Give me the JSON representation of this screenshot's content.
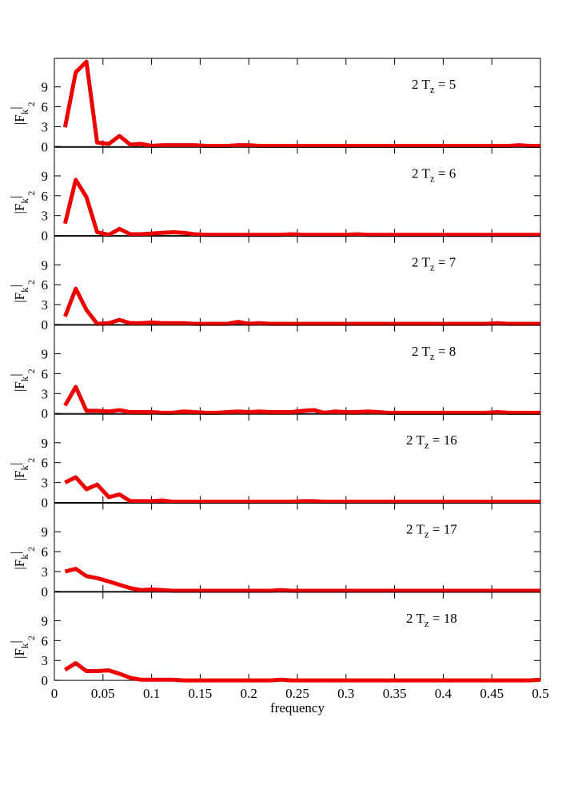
{
  "chart_data": [
    {
      "type": "line",
      "annotation": [
        "2 T",
        "z",
        " = 5"
      ],
      "ylabel": [
        "|F",
        "k",
        "|",
        "2"
      ],
      "xlim": [
        0,
        0.5
      ],
      "ylim": [
        0,
        13.3
      ],
      "yticks": [
        0,
        3,
        6,
        9
      ],
      "x": [
        0.011,
        0.022,
        0.033,
        0.044,
        0.056,
        0.067,
        0.078,
        0.089,
        0.1,
        0.111,
        0.122,
        0.133,
        0.144,
        0.156,
        0.167,
        0.178,
        0.189,
        0.2,
        0.211,
        0.222,
        0.233,
        0.244,
        0.256,
        0.267,
        0.278,
        0.289,
        0.3,
        0.311,
        0.322,
        0.333,
        0.344,
        0.356,
        0.367,
        0.378,
        0.389,
        0.4,
        0.411,
        0.422,
        0.433,
        0.444,
        0.456,
        0.467,
        0.478,
        0.489,
        0.5
      ],
      "series": [
        {
          "color": "#ee0000",
          "values": [
            2.9,
            11.2,
            12.8,
            0.6,
            0.4,
            1.6,
            0.3,
            0.4,
            0.1,
            0.2,
            0.2,
            0.2,
            0.2,
            0.1,
            0.1,
            0.1,
            0.2,
            0.2,
            0.1,
            0.1,
            0.1,
            0.1,
            0.1,
            0.1,
            0.1,
            0.1,
            0.1,
            0.1,
            0.1,
            0.1,
            0.1,
            0.1,
            0.1,
            0.1,
            0.1,
            0.1,
            0.1,
            0.1,
            0.1,
            0.1,
            0.1,
            0.1,
            0.2,
            0.1,
            0.1
          ]
        }
      ]
    },
    {
      "type": "line",
      "annotation": [
        "2 T",
        "z",
        " = 6"
      ],
      "ylabel": [
        "|F",
        "k",
        "|",
        "2"
      ],
      "xlim": [
        0,
        0.5
      ],
      "ylim": [
        0,
        13.3
      ],
      "yticks": [
        0,
        3,
        6,
        9
      ],
      "x": [
        0.011,
        0.022,
        0.033,
        0.044,
        0.056,
        0.067,
        0.078,
        0.089,
        0.1,
        0.111,
        0.122,
        0.133,
        0.144,
        0.156,
        0.167,
        0.178,
        0.189,
        0.2,
        0.211,
        0.222,
        0.233,
        0.244,
        0.256,
        0.267,
        0.278,
        0.289,
        0.3,
        0.311,
        0.322,
        0.333,
        0.344,
        0.356,
        0.367,
        0.378,
        0.389,
        0.4,
        0.411,
        0.422,
        0.433,
        0.444,
        0.456,
        0.467,
        0.478,
        0.489,
        0.5
      ],
      "series": [
        {
          "color": "#ee0000",
          "values": [
            1.8,
            8.4,
            5.8,
            0.5,
            0.1,
            1.0,
            0.2,
            0.2,
            0.3,
            0.4,
            0.5,
            0.4,
            0.2,
            0.1,
            0.1,
            0.1,
            0.1,
            0.1,
            0.1,
            0.1,
            0.1,
            0.2,
            0.1,
            0.1,
            0.1,
            0.1,
            0.1,
            0.2,
            0.1,
            0.1,
            0.1,
            0.1,
            0.1,
            0.1,
            0.1,
            0.1,
            0.1,
            0.1,
            0.1,
            0.1,
            0.1,
            0.1,
            0.1,
            0.1,
            0.1
          ]
        }
      ]
    },
    {
      "type": "line",
      "annotation": [
        "2 T",
        "z",
        " = 7"
      ],
      "ylabel": [
        "|F",
        "k",
        "|",
        "2"
      ],
      "xlim": [
        0,
        0.5
      ],
      "ylim": [
        0,
        13.3
      ],
      "yticks": [
        0,
        3,
        6,
        9
      ],
      "x": [
        0.011,
        0.022,
        0.033,
        0.044,
        0.056,
        0.067,
        0.078,
        0.089,
        0.1,
        0.111,
        0.122,
        0.133,
        0.144,
        0.156,
        0.167,
        0.178,
        0.189,
        0.2,
        0.211,
        0.222,
        0.233,
        0.244,
        0.256,
        0.267,
        0.278,
        0.289,
        0.3,
        0.311,
        0.322,
        0.333,
        0.344,
        0.356,
        0.367,
        0.378,
        0.389,
        0.4,
        0.411,
        0.422,
        0.433,
        0.444,
        0.456,
        0.467,
        0.478,
        0.489,
        0.5
      ],
      "series": [
        {
          "color": "#ee0000",
          "values": [
            1.2,
            5.4,
            2.2,
            0.1,
            0.2,
            0.7,
            0.2,
            0.2,
            0.3,
            0.2,
            0.2,
            0.2,
            0.1,
            0.1,
            0.1,
            0.1,
            0.4,
            0.1,
            0.2,
            0.1,
            0.1,
            0.1,
            0.1,
            0.1,
            0.1,
            0.1,
            0.1,
            0.1,
            0.1,
            0.1,
            0.1,
            0.1,
            0.1,
            0.1,
            0.1,
            0.1,
            0.1,
            0.1,
            0.1,
            0.1,
            0.2,
            0.1,
            0.1,
            0.1,
            0.1
          ]
        }
      ]
    },
    {
      "type": "line",
      "annotation": [
        "2 T",
        "z",
        " = 8"
      ],
      "ylabel": [
        "|F",
        "k",
        "|",
        "2"
      ],
      "xlim": [
        0,
        0.5
      ],
      "ylim": [
        0,
        13.3
      ],
      "yticks": [
        0,
        3,
        6,
        9
      ],
      "x": [
        0.011,
        0.022,
        0.033,
        0.044,
        0.056,
        0.067,
        0.078,
        0.089,
        0.1,
        0.111,
        0.122,
        0.133,
        0.144,
        0.156,
        0.167,
        0.178,
        0.189,
        0.2,
        0.211,
        0.222,
        0.233,
        0.244,
        0.256,
        0.267,
        0.278,
        0.289,
        0.3,
        0.311,
        0.322,
        0.333,
        0.344,
        0.356,
        0.367,
        0.378,
        0.389,
        0.4,
        0.411,
        0.422,
        0.433,
        0.444,
        0.456,
        0.467,
        0.478,
        0.489,
        0.5
      ],
      "series": [
        {
          "color": "#ee0000",
          "values": [
            1.2,
            4.0,
            0.4,
            0.4,
            0.3,
            0.5,
            0.2,
            0.2,
            0.2,
            0.1,
            0.1,
            0.3,
            0.2,
            0.1,
            0.1,
            0.2,
            0.3,
            0.2,
            0.3,
            0.2,
            0.2,
            0.2,
            0.4,
            0.5,
            0.1,
            0.3,
            0.2,
            0.2,
            0.3,
            0.2,
            0.1,
            0.1,
            0.1,
            0.1,
            0.1,
            0.1,
            0.1,
            0.1,
            0.1,
            0.1,
            0.2,
            0.1,
            0.1,
            0.1,
            0.1
          ]
        }
      ]
    },
    {
      "type": "line",
      "annotation": [
        "2 T",
        "z",
        " = 16"
      ],
      "ylabel": [
        "|F",
        "k",
        "|",
        "2"
      ],
      "xlim": [
        0,
        0.5
      ],
      "ylim": [
        0,
        13.3
      ],
      "yticks": [
        0,
        3,
        6,
        9
      ],
      "x": [
        0.011,
        0.022,
        0.033,
        0.044,
        0.056,
        0.067,
        0.078,
        0.089,
        0.1,
        0.111,
        0.122,
        0.133,
        0.144,
        0.156,
        0.167,
        0.178,
        0.189,
        0.2,
        0.211,
        0.222,
        0.233,
        0.244,
        0.256,
        0.267,
        0.278,
        0.289,
        0.3,
        0.311,
        0.322,
        0.333,
        0.344,
        0.356,
        0.367,
        0.378,
        0.389,
        0.4,
        0.411,
        0.422,
        0.433,
        0.444,
        0.456,
        0.467,
        0.478,
        0.489,
        0.5
      ],
      "series": [
        {
          "color": "#ee0000",
          "values": [
            3.0,
            3.8,
            2.0,
            2.7,
            0.8,
            1.2,
            0.2,
            0.2,
            0.2,
            0.3,
            0.1,
            0.1,
            0.1,
            0.1,
            0.1,
            0.1,
            0.1,
            0.1,
            0.1,
            0.1,
            0.1,
            0.1,
            0.2,
            0.2,
            0.1,
            0.1,
            0.1,
            0.1,
            0.1,
            0.1,
            0.1,
            0.1,
            0.1,
            0.1,
            0.1,
            0.1,
            0.1,
            0.1,
            0.1,
            0.1,
            0.1,
            0.1,
            0.1,
            0.1,
            0.1
          ]
        }
      ]
    },
    {
      "type": "line",
      "annotation": [
        "2 T",
        "z",
        " = 17"
      ],
      "ylabel": [
        "|F",
        "k",
        "|",
        "2"
      ],
      "xlim": [
        0,
        0.5
      ],
      "ylim": [
        0,
        13.3
      ],
      "yticks": [
        0,
        3,
        6,
        9
      ],
      "x": [
        0.011,
        0.022,
        0.033,
        0.044,
        0.056,
        0.067,
        0.078,
        0.089,
        0.1,
        0.111,
        0.122,
        0.133,
        0.144,
        0.156,
        0.167,
        0.178,
        0.189,
        0.2,
        0.211,
        0.222,
        0.233,
        0.244,
        0.256,
        0.267,
        0.278,
        0.289,
        0.3,
        0.311,
        0.322,
        0.333,
        0.344,
        0.356,
        0.367,
        0.378,
        0.389,
        0.4,
        0.411,
        0.422,
        0.433,
        0.444,
        0.456,
        0.467,
        0.478,
        0.489,
        0.5
      ],
      "series": [
        {
          "color": "#ee0000",
          "values": [
            3.0,
            3.4,
            2.3,
            2.0,
            1.5,
            1.0,
            0.5,
            0.2,
            0.3,
            0.2,
            0.1,
            0.1,
            0.1,
            0.1,
            0.1,
            0.1,
            0.1,
            0.1,
            0.1,
            0.1,
            0.2,
            0.1,
            0.1,
            0.1,
            0.1,
            0.1,
            0.1,
            0.1,
            0.1,
            0.1,
            0.1,
            0.1,
            0.1,
            0.1,
            0.1,
            0.1,
            0.1,
            0.1,
            0.1,
            0.1,
            0.1,
            0.1,
            0.1,
            0.1,
            0.1
          ]
        }
      ]
    },
    {
      "type": "line",
      "annotation": [
        "2 T",
        "z",
        " = 18"
      ],
      "ylabel": [
        "|F",
        "k",
        "|",
        "2"
      ],
      "xlabel": "frequency",
      "xlim": [
        0,
        0.5
      ],
      "ylim": [
        0,
        13.3
      ],
      "yticks": [
        0,
        3,
        6,
        9
      ],
      "xticks": [
        0,
        0.05,
        0.1,
        0.15,
        0.2,
        0.25,
        0.3,
        0.35,
        0.4,
        0.45,
        0.5
      ],
      "x": [
        0.011,
        0.022,
        0.033,
        0.044,
        0.056,
        0.067,
        0.078,
        0.089,
        0.1,
        0.111,
        0.122,
        0.133,
        0.144,
        0.156,
        0.167,
        0.178,
        0.189,
        0.2,
        0.211,
        0.222,
        0.233,
        0.244,
        0.256,
        0.267,
        0.278,
        0.289,
        0.3,
        0.311,
        0.322,
        0.333,
        0.344,
        0.356,
        0.367,
        0.378,
        0.389,
        0.4,
        0.411,
        0.422,
        0.433,
        0.444,
        0.456,
        0.467,
        0.478,
        0.489,
        0.5
      ],
      "series": [
        {
          "color": "#ee0000",
          "values": [
            1.6,
            2.6,
            1.4,
            1.4,
            1.5,
            1.0,
            0.4,
            0.1,
            0.1,
            0.1,
            0.1,
            0.0,
            0.0,
            0.0,
            0.0,
            0.0,
            0.0,
            0.0,
            0.0,
            0.0,
            0.1,
            0.0,
            0.0,
            0.0,
            0.0,
            0.0,
            0.0,
            0.0,
            0.0,
            0.0,
            0.0,
            0.0,
            0.0,
            0.0,
            0.0,
            0.0,
            0.0,
            0.0,
            0.0,
            0.0,
            0.0,
            0.0,
            0.0,
            0.0,
            0.1
          ]
        }
      ]
    }
  ]
}
